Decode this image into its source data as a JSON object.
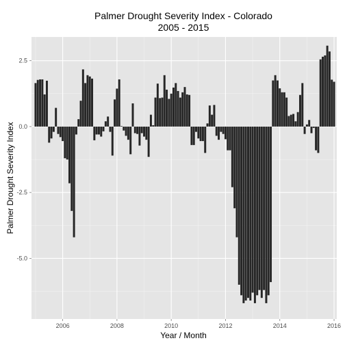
{
  "chart_data": {
    "type": "bar",
    "title_line1": "Palmer Drought Severity Index - Colorado",
    "title_line2": "2005 - 2015",
    "xlabel": "Year / Month",
    "ylabel": "Palmer Drought Severity Index",
    "xlim": [
      2004.85,
      2016.1
    ],
    "ylim": [
      -7.3,
      3.4
    ],
    "x_ticks": [
      2006,
      2008,
      2010,
      2012,
      2014,
      2016
    ],
    "x_tick_labels": [
      "2006",
      "2008",
      "2010",
      "2012",
      "2014",
      "2016"
    ],
    "y_ticks": [
      2.5,
      0.0,
      -2.5,
      -5.0
    ],
    "y_tick_labels": [
      "2.5",
      "0.0",
      "-2.5",
      "-5.0"
    ],
    "bar_color": "#262626",
    "panel_color": "#e5e5e5",
    "grid": true,
    "start_year": 2005,
    "start_month": 1,
    "values": [
      1.65,
      1.77,
      1.79,
      1.79,
      1.22,
      1.74,
      -0.61,
      -0.45,
      -0.2,
      0.71,
      -0.28,
      -0.4,
      -0.55,
      -1.2,
      -1.25,
      -2.15,
      -3.2,
      -4.2,
      -0.3,
      0.28,
      0.98,
      2.17,
      1.65,
      1.95,
      1.9,
      1.82,
      -0.52,
      -0.3,
      -0.3,
      -0.38,
      -0.18,
      0.2,
      0.38,
      -0.2,
      -1.1,
      1.03,
      1.44,
      1.79,
      0.02,
      -0.15,
      -0.35,
      -0.5,
      -1.05,
      0.88,
      -0.25,
      -0.28,
      -0.72,
      -0.25,
      -0.38,
      -0.5,
      -1.15,
      0.45,
      0.05,
      1.1,
      1.63,
      1.08,
      1.1,
      1.95,
      1.4,
      1.05,
      1.25,
      1.48,
      1.65,
      1.35,
      1.1,
      1.3,
      1.5,
      1.22,
      1.2,
      -0.7,
      -0.7,
      -0.2,
      -0.45,
      -0.55,
      -0.55,
      -1.0,
      0.12,
      0.8,
      0.45,
      0.82,
      -0.35,
      -0.5,
      -0.2,
      -0.28,
      -0.48,
      -0.9,
      -0.9,
      -2.3,
      -3.1,
      -4.2,
      -6.0,
      -6.4,
      -6.7,
      -6.6,
      -6.5,
      -6.6,
      -6.3,
      -6.7,
      -6.4,
      -6.2,
      -6.5,
      -6.2,
      -6.7,
      -6.4,
      -5.9,
      1.75,
      1.95,
      1.75,
      1.45,
      1.3,
      1.3,
      1.1,
      0.4,
      0.45,
      0.48,
      0.2,
      0.55,
      1.2,
      1.65,
      -0.28,
      0.08,
      0.25,
      -0.25,
      -0.05,
      -0.9,
      -1.0,
      2.55,
      2.65,
      2.7,
      3.07,
      2.85,
      1.78,
      1.7
    ]
  }
}
